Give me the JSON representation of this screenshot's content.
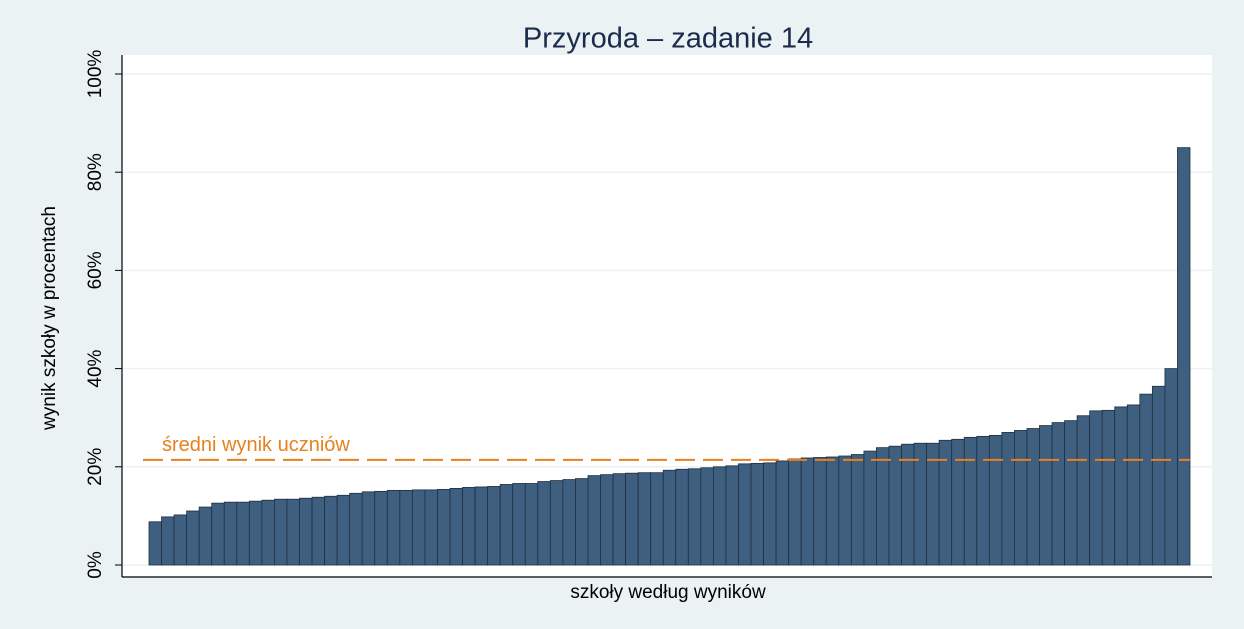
{
  "chart_data": {
    "type": "bar",
    "title": "Przyroda – zadanie 14",
    "y_label": "wynik szkoły w procentach",
    "x_label": "szkoły według wyników",
    "annotation": "średni wynik uczniów",
    "mean_line": 21.4,
    "mean_color": "#e8801e",
    "color": "#3f5f80",
    "grid": true,
    "values": [
      8.8,
      9.8,
      10.2,
      11,
      11.8,
      12.6,
      12.8,
      12.8,
      13,
      13.2,
      13.4,
      13.4,
      13.6,
      13.8,
      14,
      14.2,
      14.6,
      14.9,
      15,
      15.2,
      15.2,
      15.3,
      15.3,
      15.4,
      15.6,
      15.8,
      15.9,
      16,
      16.4,
      16.6,
      16.6,
      17,
      17.2,
      17.4,
      17.6,
      18.2,
      18.4,
      18.6,
      18.7,
      18.8,
      18.8,
      19.3,
      19.5,
      19.6,
      19.8,
      20,
      20.2,
      20.6,
      20.7,
      20.8,
      21.2,
      21.6,
      21.8,
      21.9,
      22,
      22.2,
      22.5,
      23.2,
      23.9,
      24.2,
      24.6,
      24.8,
      24.8,
      25.4,
      25.6,
      26,
      26.2,
      26.4,
      27,
      27.4,
      27.8,
      28.4,
      29,
      29.4,
      30.4,
      31.4,
      31.5,
      32.2,
      32.6,
      34.8,
      36.4,
      40,
      85
    ],
    "ylim": [
      0,
      100
    ],
    "yticks": [
      {
        "value": 0,
        "label": "0%"
      },
      {
        "value": 20,
        "label": "20%"
      },
      {
        "value": 40,
        "label": "40%"
      },
      {
        "value": 60,
        "label": "60%"
      },
      {
        "value": 80,
        "label": "80%"
      },
      {
        "value": 100,
        "label": "100%"
      }
    ]
  }
}
